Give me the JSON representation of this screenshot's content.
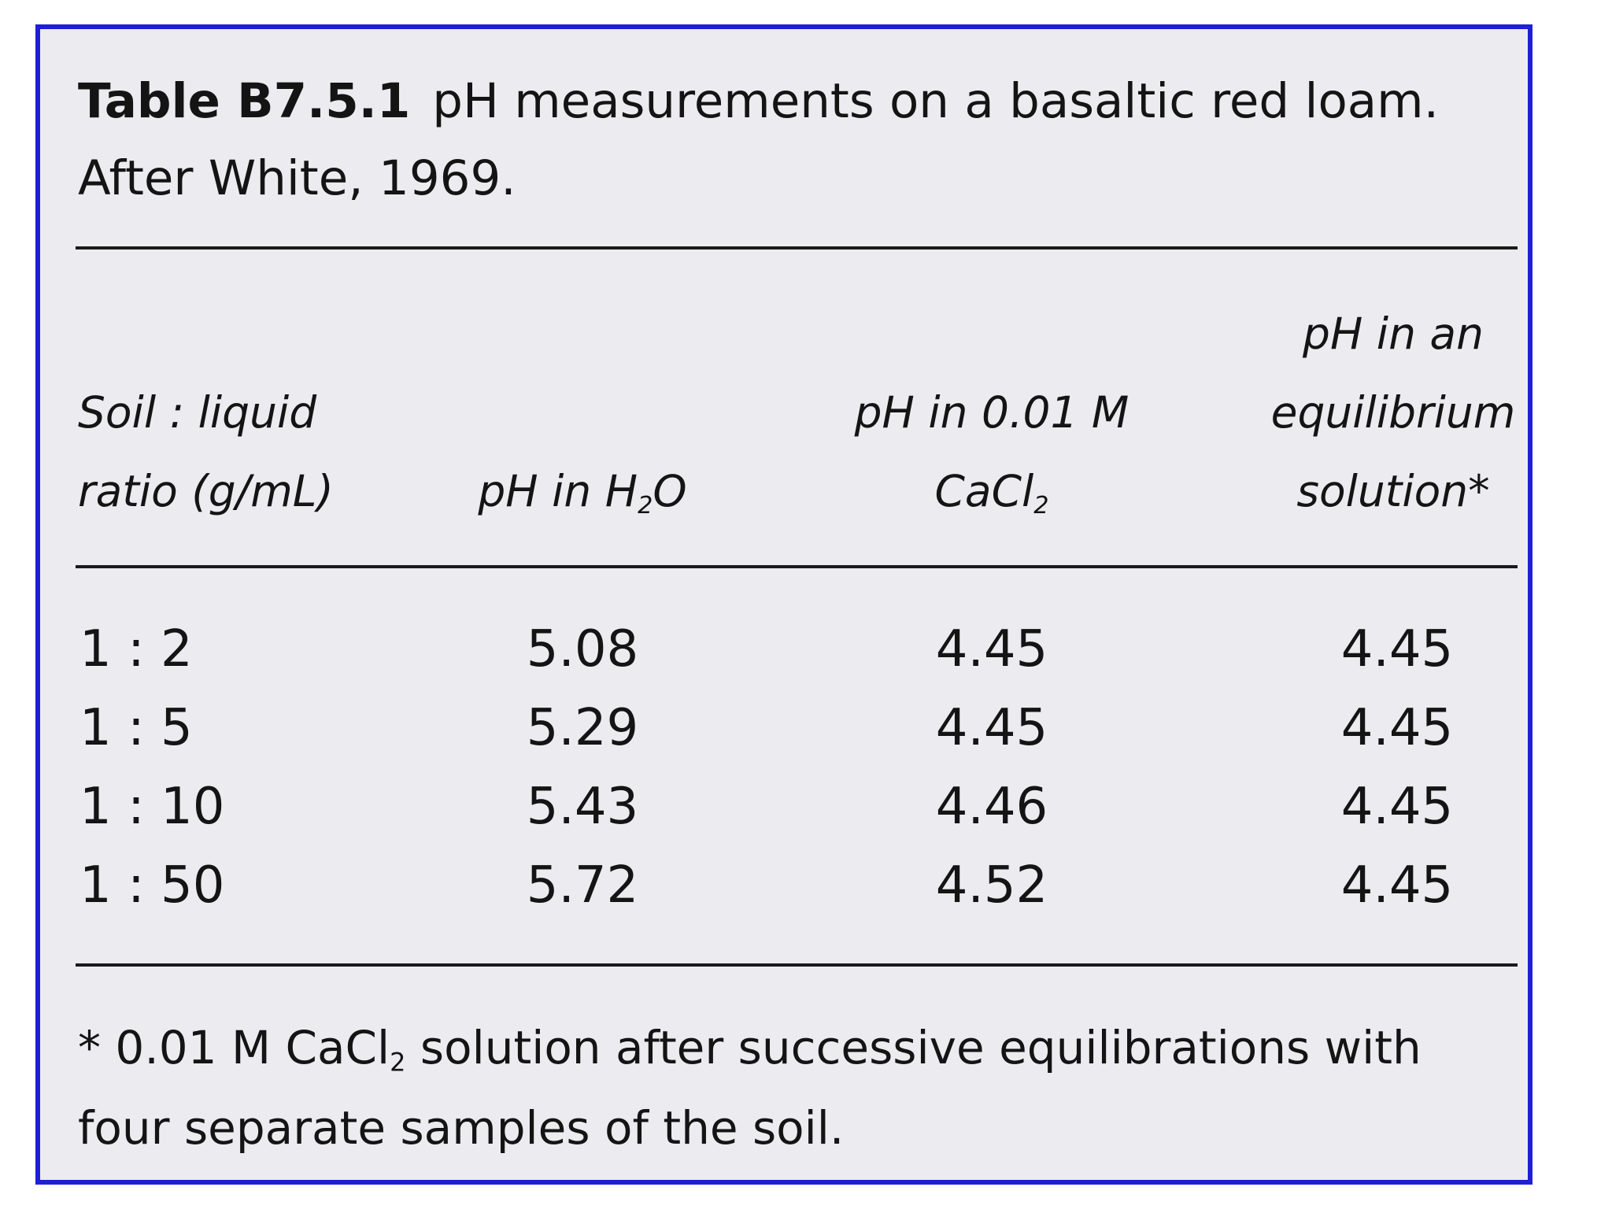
{
  "table": {
    "label": "Table B7.5.1",
    "title_line1": "pH measurements on a basaltic red loam.",
    "title_line2": "After White, 1969.",
    "headers": {
      "soil_ratio": [
        "Soil : liquid",
        "ratio (g/mL)"
      ],
      "ph_h2o": {
        "before": "pH in H",
        "sub": "2",
        "after": "O"
      },
      "ph_cacl2": {
        "line1": "pH in 0.01 M",
        "before": "CaCl",
        "sub": "2"
      },
      "ph_equilibrium": [
        "pH in an",
        "equilibrium",
        "solution*"
      ]
    },
    "rows": [
      {
        "ratio": "1 : 2",
        "h2o": "5.08",
        "cacl2": "4.45",
        "equilibrium": "4.45"
      },
      {
        "ratio": "1 : 5",
        "h2o": "5.29",
        "cacl2": "4.45",
        "equilibrium": "4.45"
      },
      {
        "ratio": "1 : 10",
        "h2o": "5.43",
        "cacl2": "4.46",
        "equilibrium": "4.45"
      },
      {
        "ratio": "1 : 50",
        "h2o": "5.72",
        "cacl2": "4.52",
        "equilibrium": "4.45"
      }
    ],
    "footnote": {
      "before": "* 0.01 M CaCl",
      "sub": "2",
      "after": " solution after successive equilibrations with four separate samples of the soil."
    }
  },
  "colors": {
    "border": "#1f1fd6",
    "background": "#ececf0",
    "text": "#141414"
  }
}
